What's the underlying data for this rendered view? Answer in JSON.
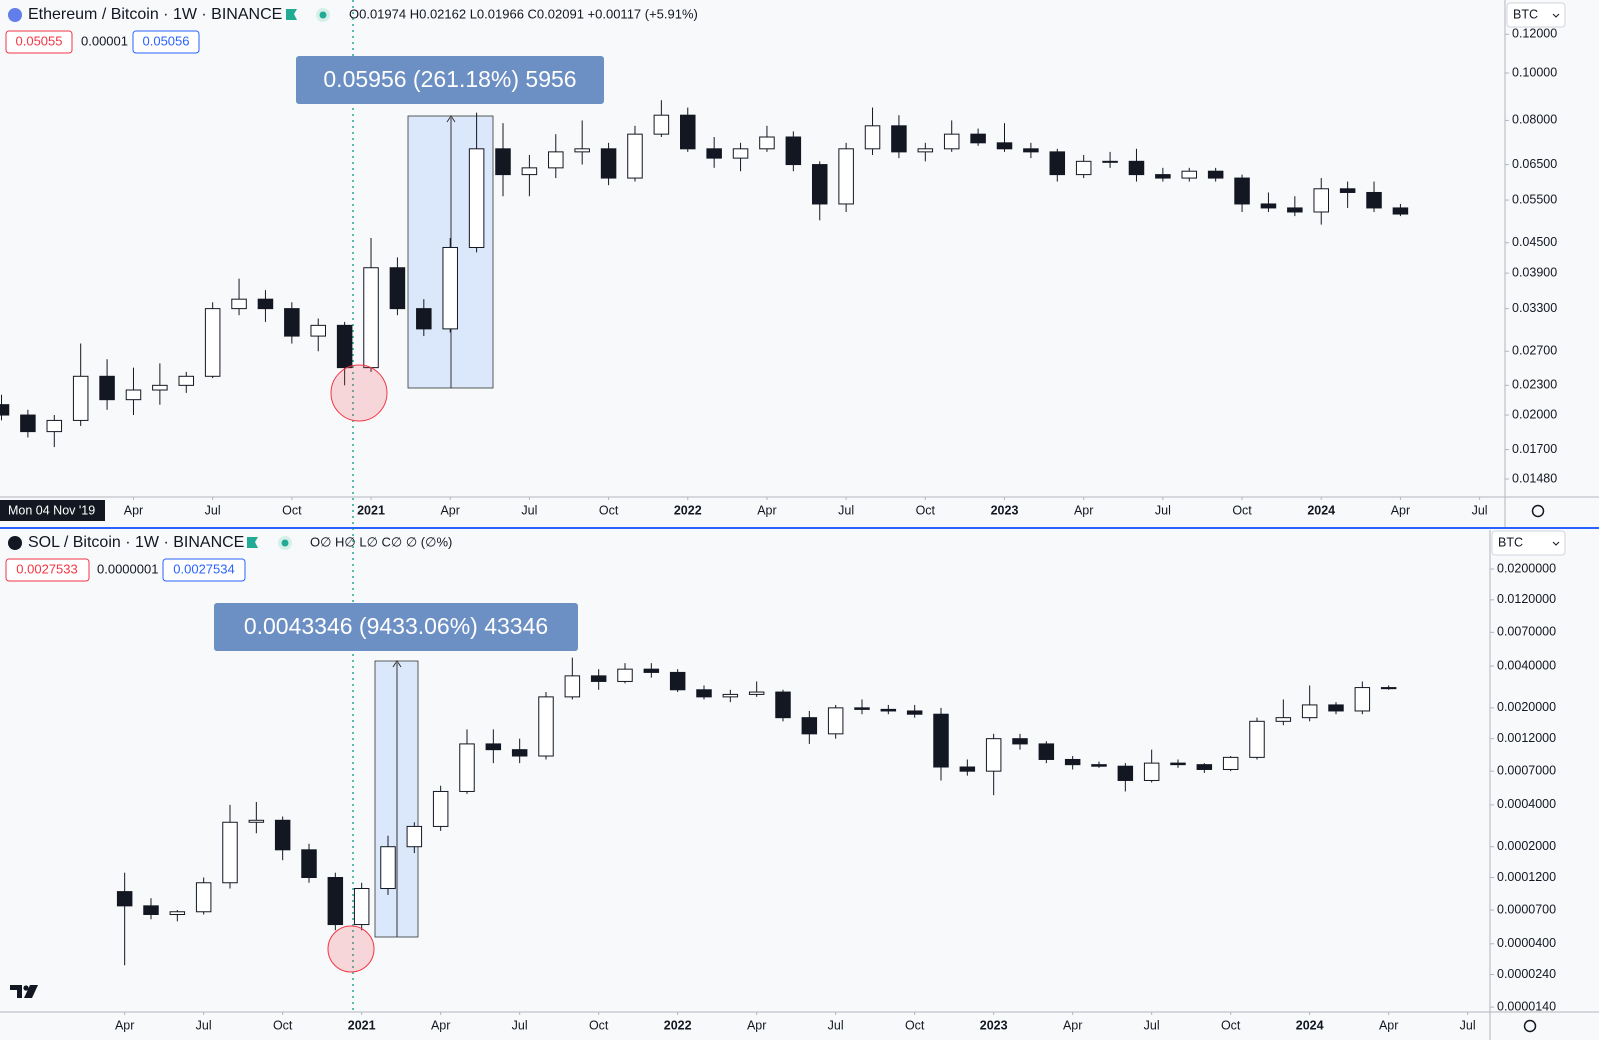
{
  "chart_data": [
    {
      "type": "candlestick",
      "title": "Ethereum / Bitcoin · 1W · BINANCE",
      "ohlc_label": "O0.01974 H0.02162 L0.01966 C0.02091 +0.00117 (+5.91%)",
      "badges": [
        "0.05055",
        "0.00001",
        "0.05056"
      ],
      "currency": "BTC",
      "crosshair_label": "Mon 04 Nov '19",
      "measure_label": "0.05956 (261.18%) 5956",
      "log_scale": true,
      "colors": {
        "up": "#ffffff",
        "down": "#131722",
        "wick": "#131722"
      },
      "x": [
        "2019-11",
        "2019-12",
        "2020-01",
        "2020-02",
        "2020-03",
        "2020-04",
        "2020-05",
        "2020-06",
        "2020-07",
        "2020-08",
        "2020-09",
        "2020-10",
        "2020-11",
        "2020-12",
        "2021-01",
        "2021-02",
        "2021-03",
        "2021-04",
        "2021-05",
        "2021-06",
        "2021-07",
        "2021-08",
        "2021-09",
        "2021-10",
        "2021-11",
        "2021-12",
        "2022-01",
        "2022-02",
        "2022-03",
        "2022-04",
        "2022-05",
        "2022-06",
        "2022-07",
        "2022-08",
        "2022-09",
        "2022-10",
        "2022-11",
        "2022-12",
        "2023-01",
        "2023-02",
        "2023-03",
        "2023-04",
        "2023-05",
        "2023-06",
        "2023-07",
        "2023-08",
        "2023-09",
        "2023-10",
        "2023-11",
        "2023-12",
        "2024-01",
        "2024-02",
        "2024-03",
        "2024-04"
      ],
      "open": [
        0.021,
        0.02,
        0.0185,
        0.0195,
        0.024,
        0.0215,
        0.0225,
        0.023,
        0.024,
        0.033,
        0.0345,
        0.033,
        0.029,
        0.0305,
        0.025,
        0.04,
        0.033,
        0.03,
        0.044,
        0.07,
        0.062,
        0.064,
        0.069,
        0.07,
        0.061,
        0.075,
        0.082,
        0.07,
        0.067,
        0.07,
        0.074,
        0.065,
        0.054,
        0.07,
        0.078,
        0.069,
        0.07,
        0.075,
        0.072,
        0.07,
        0.069,
        0.062,
        0.066,
        0.066,
        0.062,
        0.061,
        0.063,
        0.061,
        0.054,
        0.053,
        0.052,
        0.058,
        0.057,
        0.053
      ],
      "high": [
        0.022,
        0.0205,
        0.02,
        0.028,
        0.026,
        0.025,
        0.0255,
        0.0245,
        0.034,
        0.038,
        0.036,
        0.034,
        0.0315,
        0.031,
        0.046,
        0.042,
        0.0345,
        0.046,
        0.083,
        0.079,
        0.068,
        0.075,
        0.08,
        0.072,
        0.078,
        0.088,
        0.085,
        0.074,
        0.072,
        0.078,
        0.076,
        0.066,
        0.072,
        0.085,
        0.082,
        0.072,
        0.08,
        0.077,
        0.079,
        0.072,
        0.07,
        0.068,
        0.069,
        0.07,
        0.064,
        0.064,
        0.064,
        0.062,
        0.057,
        0.056,
        0.061,
        0.06,
        0.06,
        0.054
      ],
      "low": [
        0.0195,
        0.018,
        0.0172,
        0.019,
        0.0205,
        0.02,
        0.021,
        0.0222,
        0.0238,
        0.032,
        0.031,
        0.028,
        0.027,
        0.023,
        0.0245,
        0.032,
        0.029,
        0.0295,
        0.043,
        0.056,
        0.056,
        0.061,
        0.065,
        0.059,
        0.06,
        0.074,
        0.069,
        0.064,
        0.063,
        0.069,
        0.063,
        0.05,
        0.052,
        0.068,
        0.067,
        0.066,
        0.069,
        0.071,
        0.069,
        0.067,
        0.06,
        0.061,
        0.064,
        0.06,
        0.06,
        0.06,
        0.06,
        0.052,
        0.052,
        0.051,
        0.049,
        0.053,
        0.052,
        0.051
      ],
      "close": [
        0.02,
        0.0185,
        0.0195,
        0.024,
        0.0215,
        0.0225,
        0.023,
        0.024,
        0.033,
        0.0345,
        0.033,
        0.029,
        0.0305,
        0.025,
        0.04,
        0.033,
        0.03,
        0.044,
        0.07,
        0.062,
        0.064,
        0.069,
        0.07,
        0.061,
        0.075,
        0.082,
        0.07,
        0.067,
        0.07,
        0.074,
        0.065,
        0.054,
        0.07,
        0.078,
        0.069,
        0.07,
        0.075,
        0.072,
        0.07,
        0.069,
        0.062,
        0.066,
        0.066,
        0.062,
        0.061,
        0.063,
        0.061,
        0.054,
        0.053,
        0.052,
        0.058,
        0.057,
        0.053,
        0.0515
      ],
      "xlim": [
        "2019-11",
        "2024-08"
      ],
      "xticks": [
        {
          "value": "2020-04",
          "label": "Apr"
        },
        {
          "value": "2020-07",
          "label": "Jul"
        },
        {
          "value": "2020-10",
          "label": "Oct"
        },
        {
          "value": "2021-01",
          "label": "2021"
        },
        {
          "value": "2021-04",
          "label": "Apr"
        },
        {
          "value": "2021-07",
          "label": "Jul"
        },
        {
          "value": "2021-10",
          "label": "Oct"
        },
        {
          "value": "2022-01",
          "label": "2022"
        },
        {
          "value": "2022-04",
          "label": "Apr"
        },
        {
          "value": "2022-07",
          "label": "Jul"
        },
        {
          "value": "2022-10",
          "label": "Oct"
        },
        {
          "value": "2023-01",
          "label": "2023"
        },
        {
          "value": "2023-04",
          "label": "Apr"
        },
        {
          "value": "2023-07",
          "label": "Jul"
        },
        {
          "value": "2023-10",
          "label": "Oct"
        },
        {
          "value": "2024-01",
          "label": "2024"
        },
        {
          "value": "2024-04",
          "label": "Apr"
        },
        {
          "value": "2024-07",
          "label": "Jul"
        }
      ],
      "ylim": [
        0.0136,
        0.141
      ],
      "yticks": [
        {
          "value": 0.12,
          "label": "0.12000"
        },
        {
          "value": 0.1,
          "label": "0.10000"
        },
        {
          "value": 0.08,
          "label": "0.08000"
        },
        {
          "value": 0.065,
          "label": "0.06500"
        },
        {
          "value": 0.055,
          "label": "0.05500"
        },
        {
          "value": 0.045,
          "label": "0.04500"
        },
        {
          "value": 0.039,
          "label": "0.03900"
        },
        {
          "value": 0.033,
          "label": "0.03300"
        },
        {
          "value": 0.027,
          "label": "0.02700"
        },
        {
          "value": 0.023,
          "label": "0.02300"
        },
        {
          "value": 0.02,
          "label": "0.02000"
        },
        {
          "value": 0.017,
          "label": "0.01700"
        },
        {
          "value": 0.0148,
          "label": "0.01480"
        }
      ]
    },
    {
      "type": "candlestick",
      "title": "SOL / Bitcoin · 1W · BINANCE",
      "ohlc_label": "O∅ H∅ L∅ C∅ ∅ (∅%)",
      "badges": [
        "0.0027533",
        "0.0000001",
        "0.0027534"
      ],
      "currency": "BTC",
      "measure_label": "0.0043346 (9433.06%) 43346",
      "log_scale": true,
      "colors": {
        "up": "#ffffff",
        "down": "#131722",
        "wick": "#131722"
      },
      "x": [
        "2020-04",
        "2020-05",
        "2020-06",
        "2020-07",
        "2020-08",
        "2020-09",
        "2020-10",
        "2020-11",
        "2020-12",
        "2021-01",
        "2021-02",
        "2021-03",
        "2021-04",
        "2021-05",
        "2021-06",
        "2021-07",
        "2021-08",
        "2021-09",
        "2021-10",
        "2021-11",
        "2021-12",
        "2022-01",
        "2022-02",
        "2022-03",
        "2022-04",
        "2022-05",
        "2022-06",
        "2022-07",
        "2022-08",
        "2022-09",
        "2022-10",
        "2022-11",
        "2022-12",
        "2023-01",
        "2023-02",
        "2023-03",
        "2023-04",
        "2023-05",
        "2023-06",
        "2023-07",
        "2023-08",
        "2023-09",
        "2023-10",
        "2023-11",
        "2023-12",
        "2024-01",
        "2024-02",
        "2024-03",
        "2024-04"
      ],
      "open": [
        9.5e-05,
        7.5e-05,
        6.5e-05,
        6.8e-05,
        0.00011,
        0.0003,
        0.00031,
        0.00019,
        0.00012,
        5.5e-05,
        0.0001,
        0.0002,
        0.00028,
        0.0005,
        0.0011,
        0.001,
        0.0009,
        0.0024,
        0.0034,
        0.0031,
        0.0038,
        0.0036,
        0.0027,
        0.0024,
        0.0025,
        0.0026,
        0.0017,
        0.0013,
        0.002,
        0.00195,
        0.0019,
        0.0018,
        0.00075,
        0.0007,
        0.0012,
        0.0011,
        0.00085,
        0.00078,
        0.00076,
        0.0006,
        0.0008,
        0.00078,
        0.00072,
        0.00088,
        0.0016,
        0.0017,
        0.0021,
        0.0019,
        0.0028
      ],
      "high": [
        0.00013,
        8.5e-05,
        7e-05,
        0.00012,
        0.0004,
        0.00042,
        0.00033,
        0.00021,
        0.00013,
        0.00011,
        0.00024,
        0.0003,
        0.00055,
        0.0014,
        0.0014,
        0.0012,
        0.0026,
        0.0046,
        0.0038,
        0.0042,
        0.0042,
        0.0038,
        0.0029,
        0.0027,
        0.0031,
        0.0027,
        0.0019,
        0.0021,
        0.0023,
        0.0021,
        0.0021,
        0.002,
        0.00085,
        0.0013,
        0.0013,
        0.00115,
        0.0009,
        0.00082,
        0.0008,
        0.001,
        0.00085,
        0.0008,
        0.0009,
        0.0017,
        0.0023,
        0.0029,
        0.0022,
        0.0031,
        0.0029
      ],
      "low": [
        2.8e-05,
        6e-05,
        5.8e-05,
        6.5e-05,
        0.0001,
        0.00025,
        0.00016,
        0.00011,
        5e-05,
        5e-05,
        9e-05,
        0.00018,
        0.00026,
        0.00048,
        0.0008,
        0.0008,
        0.00085,
        0.0023,
        0.0027,
        0.003,
        0.0033,
        0.0026,
        0.0023,
        0.0022,
        0.0024,
        0.0016,
        0.0011,
        0.0012,
        0.0018,
        0.0018,
        0.0017,
        0.0006,
        0.00065,
        0.00047,
        0.001,
        0.0008,
        0.00072,
        0.00074,
        0.0005,
        0.00058,
        0.00074,
        0.00068,
        0.0007,
        0.00085,
        0.0015,
        0.0016,
        0.0018,
        0.0018,
        0.0027
      ],
      "close": [
        7.5e-05,
        6.5e-05,
        6.8e-05,
        0.00011,
        0.0003,
        0.00031,
        0.00019,
        0.00012,
        5.5e-05,
        0.0001,
        0.0002,
        0.00028,
        0.0005,
        0.0011,
        0.001,
        0.0009,
        0.0024,
        0.0034,
        0.0031,
        0.0038,
        0.0036,
        0.0027,
        0.0024,
        0.0025,
        0.0026,
        0.0017,
        0.0013,
        0.002,
        0.00195,
        0.0019,
        0.0018,
        0.00075,
        0.0007,
        0.0012,
        0.0011,
        0.00085,
        0.00078,
        0.00076,
        0.0006,
        0.0008,
        0.00078,
        0.00072,
        0.00088,
        0.0016,
        0.0017,
        0.0021,
        0.0019,
        0.0028,
        0.00275
      ],
      "xlim": [
        "2019-11",
        "2024-08"
      ],
      "xticks": [
        {
          "value": "2020-04",
          "label": "Apr"
        },
        {
          "value": "2020-07",
          "label": "Jul"
        },
        {
          "value": "2020-10",
          "label": "Oct"
        },
        {
          "value": "2021-01",
          "label": "2021"
        },
        {
          "value": "2021-04",
          "label": "Apr"
        },
        {
          "value": "2021-07",
          "label": "Jul"
        },
        {
          "value": "2021-10",
          "label": "Oct"
        },
        {
          "value": "2022-01",
          "label": "2022"
        },
        {
          "value": "2022-04",
          "label": "Apr"
        },
        {
          "value": "2022-07",
          "label": "Jul"
        },
        {
          "value": "2022-10",
          "label": "Oct"
        },
        {
          "value": "2023-01",
          "label": "2023"
        },
        {
          "value": "2023-04",
          "label": "Apr"
        },
        {
          "value": "2023-07",
          "label": "Jul"
        },
        {
          "value": "2023-10",
          "label": "Oct"
        },
        {
          "value": "2024-01",
          "label": "2024"
        },
        {
          "value": "2024-04",
          "label": "Apr"
        },
        {
          "value": "2024-07",
          "label": "Jul"
        }
      ],
      "ylim": [
        1.29e-05,
        0.0382
      ],
      "yticks": [
        {
          "value": 0.02,
          "label": "0.0200000"
        },
        {
          "value": 0.012,
          "label": "0.0120000"
        },
        {
          "value": 0.007,
          "label": "0.0070000"
        },
        {
          "value": 0.004,
          "label": "0.0040000"
        },
        {
          "value": 0.002,
          "label": "0.0020000"
        },
        {
          "value": 0.0012,
          "label": "0.0012000"
        },
        {
          "value": 0.0007,
          "label": "0.0007000"
        },
        {
          "value": 0.0004,
          "label": "0.0004000"
        },
        {
          "value": 0.0002,
          "label": "0.0002000"
        },
        {
          "value": 0.00012,
          "label": "0.0001200"
        },
        {
          "value": 7e-05,
          "label": "0.0000700"
        },
        {
          "value": 4e-05,
          "label": "0.0000400"
        },
        {
          "value": 2.4e-05,
          "label": "0.0000240"
        },
        {
          "value": 1.4e-05,
          "label": "0.0000140"
        }
      ]
    }
  ]
}
